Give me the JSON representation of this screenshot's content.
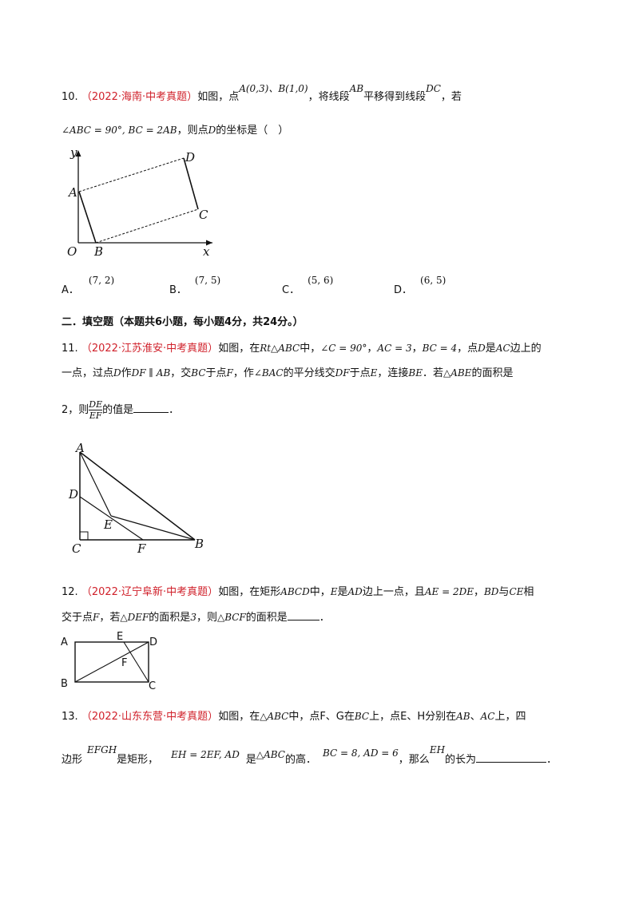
{
  "q10": {
    "num": "10.",
    "source": "（2022·海南·中考真题）",
    "t1": "如图，点",
    "pts": "A(0,3)、B(1,0)",
    "t2": "，将线段",
    "seg1": "AB",
    "t3": "平移得到线段",
    "seg2": "DC",
    "t4": "，若",
    "cond": "∠ABC = 90°, BC = 2AB",
    "t5": "，则点",
    "ptD": "D",
    "t6": "的坐标是（　）",
    "figure": {
      "y": "y",
      "A": "A",
      "D": "D",
      "C": "C",
      "O": "O",
      "B": "B",
      "x": "x"
    },
    "options": [
      {
        "label": "A．",
        "value": "(7, 2)"
      },
      {
        "label": "B．",
        "value": "(7, 5)"
      },
      {
        "label": "C．",
        "value": "(5, 6)"
      },
      {
        "label": "D．",
        "value": "(6, 5)"
      }
    ]
  },
  "section2": {
    "title": "二．填空题（本题共6小题，每小题4分，共24分。）"
  },
  "q11": {
    "num": "11.",
    "source": "（2022·江苏淮安·中考真题）",
    "t1": "如图，在",
    "rt": "Rt△ABC",
    "t2": "中，",
    "angC": "∠C = 90°",
    "t3": "，",
    "ac": "AC = 3",
    "t4": "，",
    "bc": "BC = 4",
    "t5": "，点",
    "ptD": "D",
    "t6": "是",
    "acSeg": "AC",
    "t7": "边上的",
    "line2a": "一点，过点",
    "ptD2": "D",
    "t8": "作",
    "df": "DF ∥ AB",
    "t9": "，交",
    "bcSeg": "BC",
    "t10": "于点",
    "ptF": "F",
    "t11": "，作",
    "angBAC": "∠BAC",
    "t12": "的平分线交",
    "dfSeg": "DF",
    "t13": "于点",
    "ptE": "E",
    "t14": "，连接",
    "be": "BE",
    "t15": "．若",
    "abe": "△ABE",
    "t16": "的面积是",
    "line3a": "2，则",
    "fracNum": "DE",
    "fracDen": "EF",
    "t17": "的值是",
    "t18": "．",
    "figure": {
      "A": "A",
      "D": "D",
      "E": "E",
      "C": "C",
      "F": "F",
      "B": "B"
    }
  },
  "q12": {
    "num": "12.",
    "source": "（2022·辽宁阜新·中考真题）",
    "t1": "如图，在矩形",
    "abcd": "ABCD",
    "t2": "中，",
    "ptE": "E",
    "t3": "是",
    "ad": "AD",
    "t4": "边上一点，且",
    "ae": "AE = 2DE",
    "t5": "，",
    "bd": "BD",
    "t6": "与",
    "ce": "CE",
    "t7": "相",
    "line2a": "交于点",
    "ptF": "F",
    "t8": "，若",
    "def": "△DEF",
    "t9": "的面积是",
    "three": "3",
    "t10": "，则",
    "bcf": "△BCF",
    "t11": "的面积是",
    "t12": "．",
    "figure": {
      "A": "A",
      "E": "E",
      "D": "D",
      "F": "F",
      "B": "B",
      "C": "C"
    }
  },
  "q13": {
    "num": "13.",
    "source": "（2022·山东东营·中考真题）",
    "t1": "如图，在",
    "abc": "△ABC",
    "t2": "中，点F、G在",
    "bc": "BC",
    "t3": "上，点E、H分别在",
    "ab": "AB",
    "t4": "、",
    "ac": "AC",
    "t5": "上，四",
    "line2a": "边形",
    "efgh": "EFGH",
    "t6": "是矩形，",
    "eh": "EH = 2EF, AD",
    "t7": "是",
    "abc2": "△ABC",
    "t8": "的高．",
    "bcad": "BC = 8, AD = 6",
    "t9": "，那么",
    "ehSeg": "EH",
    "t10": "的长为",
    "t11": "．"
  }
}
